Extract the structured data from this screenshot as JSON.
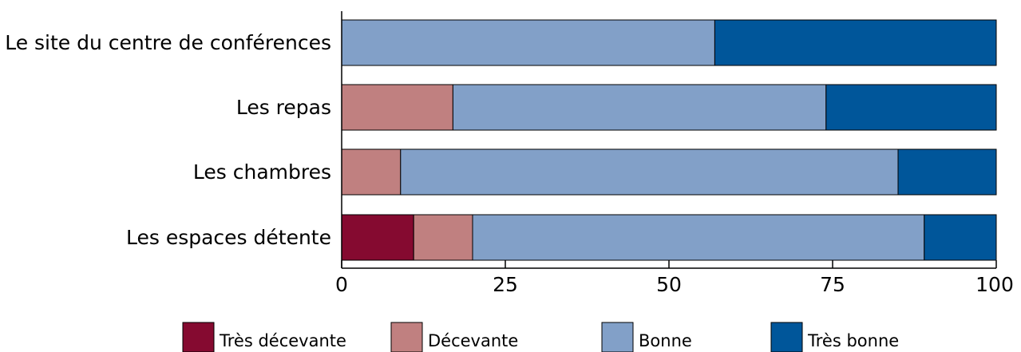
{
  "chart_data": {
    "type": "bar",
    "orientation": "horizontal",
    "stacked": true,
    "categories": [
      "Le site du centre de conférences",
      "Les repas",
      "Les chambres",
      "Les espaces détente"
    ],
    "series": [
      {
        "name": "Très décevante",
        "color": "#850a30",
        "values": [
          0,
          0,
          0,
          11
        ]
      },
      {
        "name": "Décevante",
        "color": "#c08080",
        "values": [
          0,
          17,
          9,
          9
        ]
      },
      {
        "name": "Bonne",
        "color": "#82a0c8",
        "values": [
          57,
          57,
          76,
          69
        ]
      },
      {
        "name": "Très bonne",
        "color": "#00569a",
        "values": [
          43,
          26,
          15,
          11
        ]
      }
    ],
    "x_ticks": [
      "0",
      "25",
      "50",
      "75",
      "100"
    ],
    "xlim": [
      0,
      100
    ],
    "grid": false,
    "legend_position": "bottom"
  }
}
